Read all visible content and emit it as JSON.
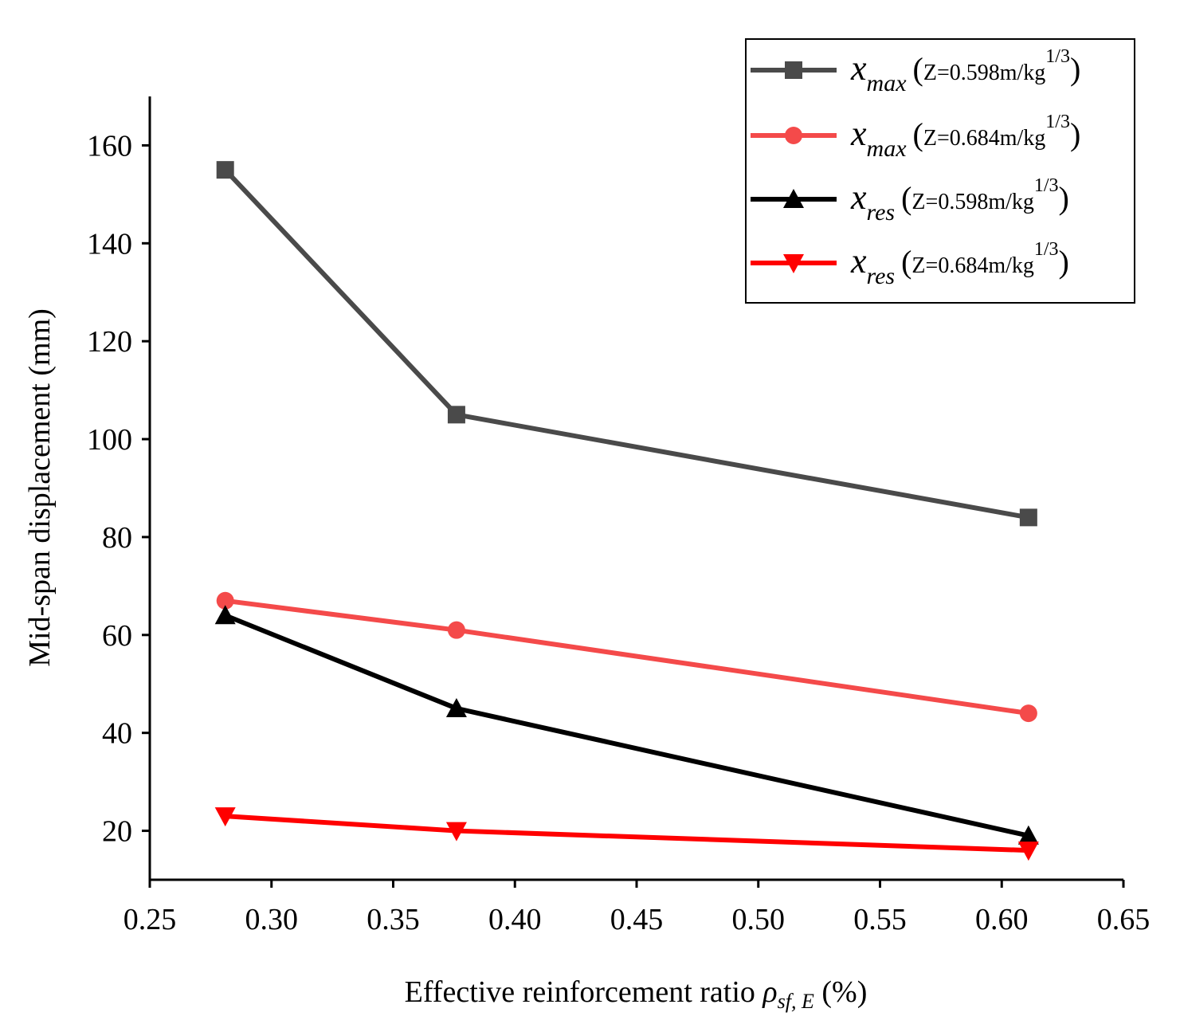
{
  "chart_data": {
    "type": "line",
    "title": "",
    "xlabel": {
      "prefix": "Effective reinforcement ratio ",
      "symbol": "ρ",
      "subscript": "sf, E",
      "suffix": " (%)"
    },
    "ylabel": "Mid-span displacement (mm)",
    "xlim": [
      0.25,
      0.65
    ],
    "ylim": [
      10,
      170
    ],
    "xticks": [
      0.25,
      0.3,
      0.35,
      0.4,
      0.45,
      0.5,
      0.55,
      0.6,
      0.65
    ],
    "xtick_labels": [
      "0.25",
      "0.30",
      "0.35",
      "0.40",
      "0.45",
      "0.50",
      "0.55",
      "0.60",
      "0.65"
    ],
    "yticks": [
      20,
      40,
      60,
      80,
      100,
      120,
      140,
      160
    ],
    "ytick_labels": [
      "20",
      "40",
      "60",
      "80",
      "100",
      "120",
      "140",
      "160"
    ],
    "x": [
      0.281,
      0.376,
      0.611
    ],
    "legend_position": "top-right",
    "series": [
      {
        "name": "x_max (Z=0.598m/kg^1/3)",
        "var": "x",
        "sub": "max",
        "open": "(",
        "text": "Z=0.598m/kg",
        "sup": "1/3",
        "close": ")",
        "color": "#4a4a4a",
        "marker": "square",
        "values": [
          155,
          105,
          84
        ]
      },
      {
        "name": "x_max (Z=0.684m/kg^1/3)",
        "var": "x",
        "sub": "max",
        "open": "(",
        "text": "Z=0.684m/kg",
        "sup": "1/3",
        "close": ")",
        "color": "#f44a4a",
        "marker": "circle",
        "values": [
          67,
          61,
          44
        ]
      },
      {
        "name": "x_res (Z=0.598m/kg^1/3)",
        "var": "x",
        "sub": "res",
        "open": "(",
        "text": "Z=0.598m/kg",
        "sup": "1/3",
        "close": ")",
        "color": "#000000",
        "marker": "triangle-up",
        "values": [
          64,
          45,
          19
        ]
      },
      {
        "name": "x_res(Z=0.684m/kg^1/3)",
        "var": "x",
        "sub": "res",
        "open": "(",
        "text": "Z=0.684m/kg",
        "sup": "1/3",
        "close": ")",
        "color": "#ff0000",
        "marker": "triangle-down",
        "values": [
          23,
          20,
          16
        ]
      }
    ]
  }
}
